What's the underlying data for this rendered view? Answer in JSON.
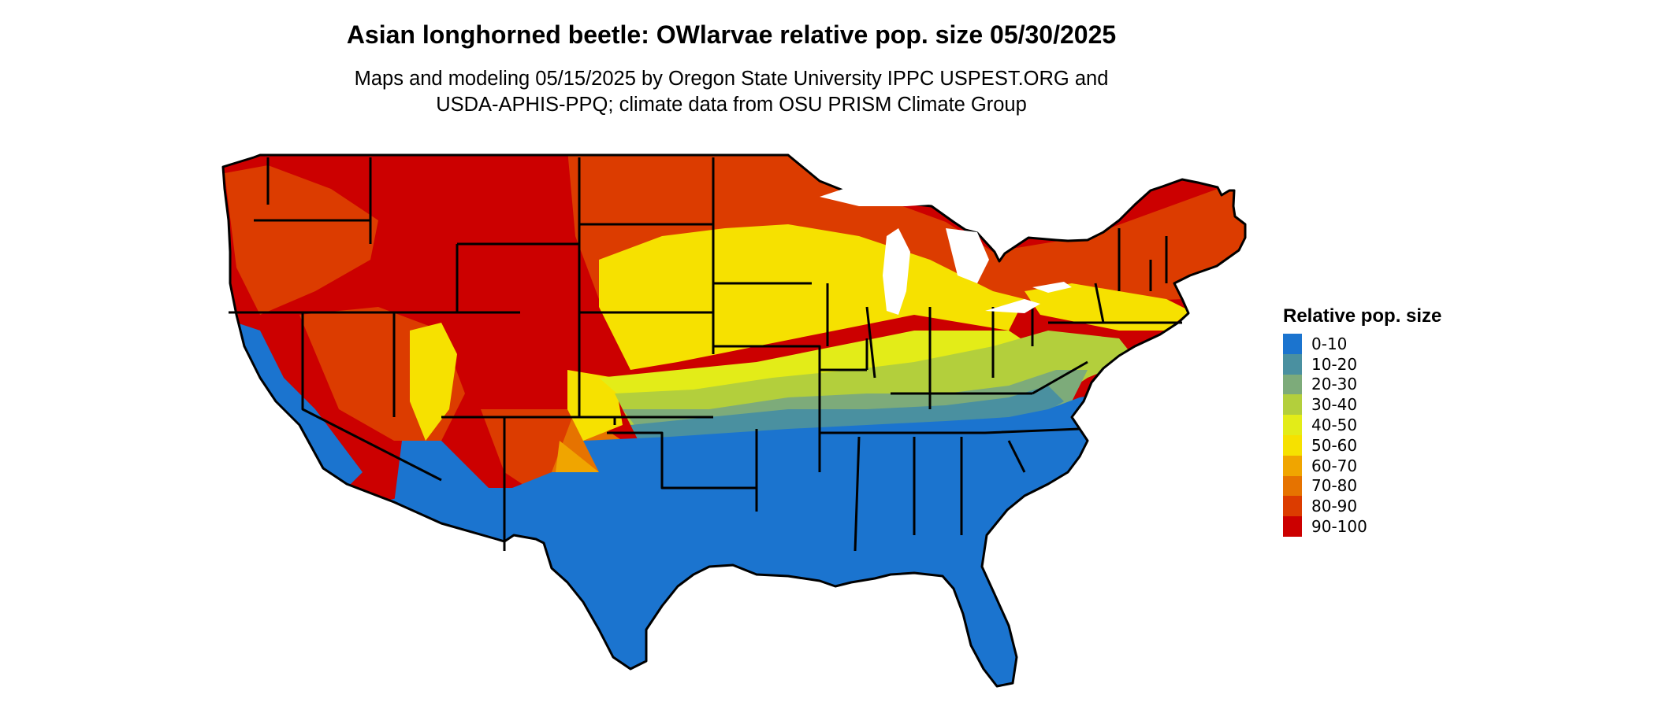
{
  "title": "Asian longhorned beetle: OWlarvae relative pop. size 05/30/2025",
  "subtitle_lines": [
    "Maps and modeling 05/15/2025 by Oregon State University IPPC USPEST.ORG and",
    "USDA-APHIS-PPQ; climate data from OSU PRISM Climate Group"
  ],
  "legend": {
    "title": "Relative pop. size",
    "items": [
      {
        "label": "0-10",
        "color": "#1b74cf"
      },
      {
        "label": "10-20",
        "color": "#4a90a0"
      },
      {
        "label": "20-30",
        "color": "#7dab7a"
      },
      {
        "label": "30-40",
        "color": "#b3cf3c"
      },
      {
        "label": "40-50",
        "color": "#e3ec18"
      },
      {
        "label": "50-60",
        "color": "#f6e100"
      },
      {
        "label": "60-70",
        "color": "#f0a500"
      },
      {
        "label": "70-80",
        "color": "#e67300"
      },
      {
        "label": "80-90",
        "color": "#dc3c00"
      },
      {
        "label": "90-100",
        "color": "#cc0000"
      }
    ]
  }
}
